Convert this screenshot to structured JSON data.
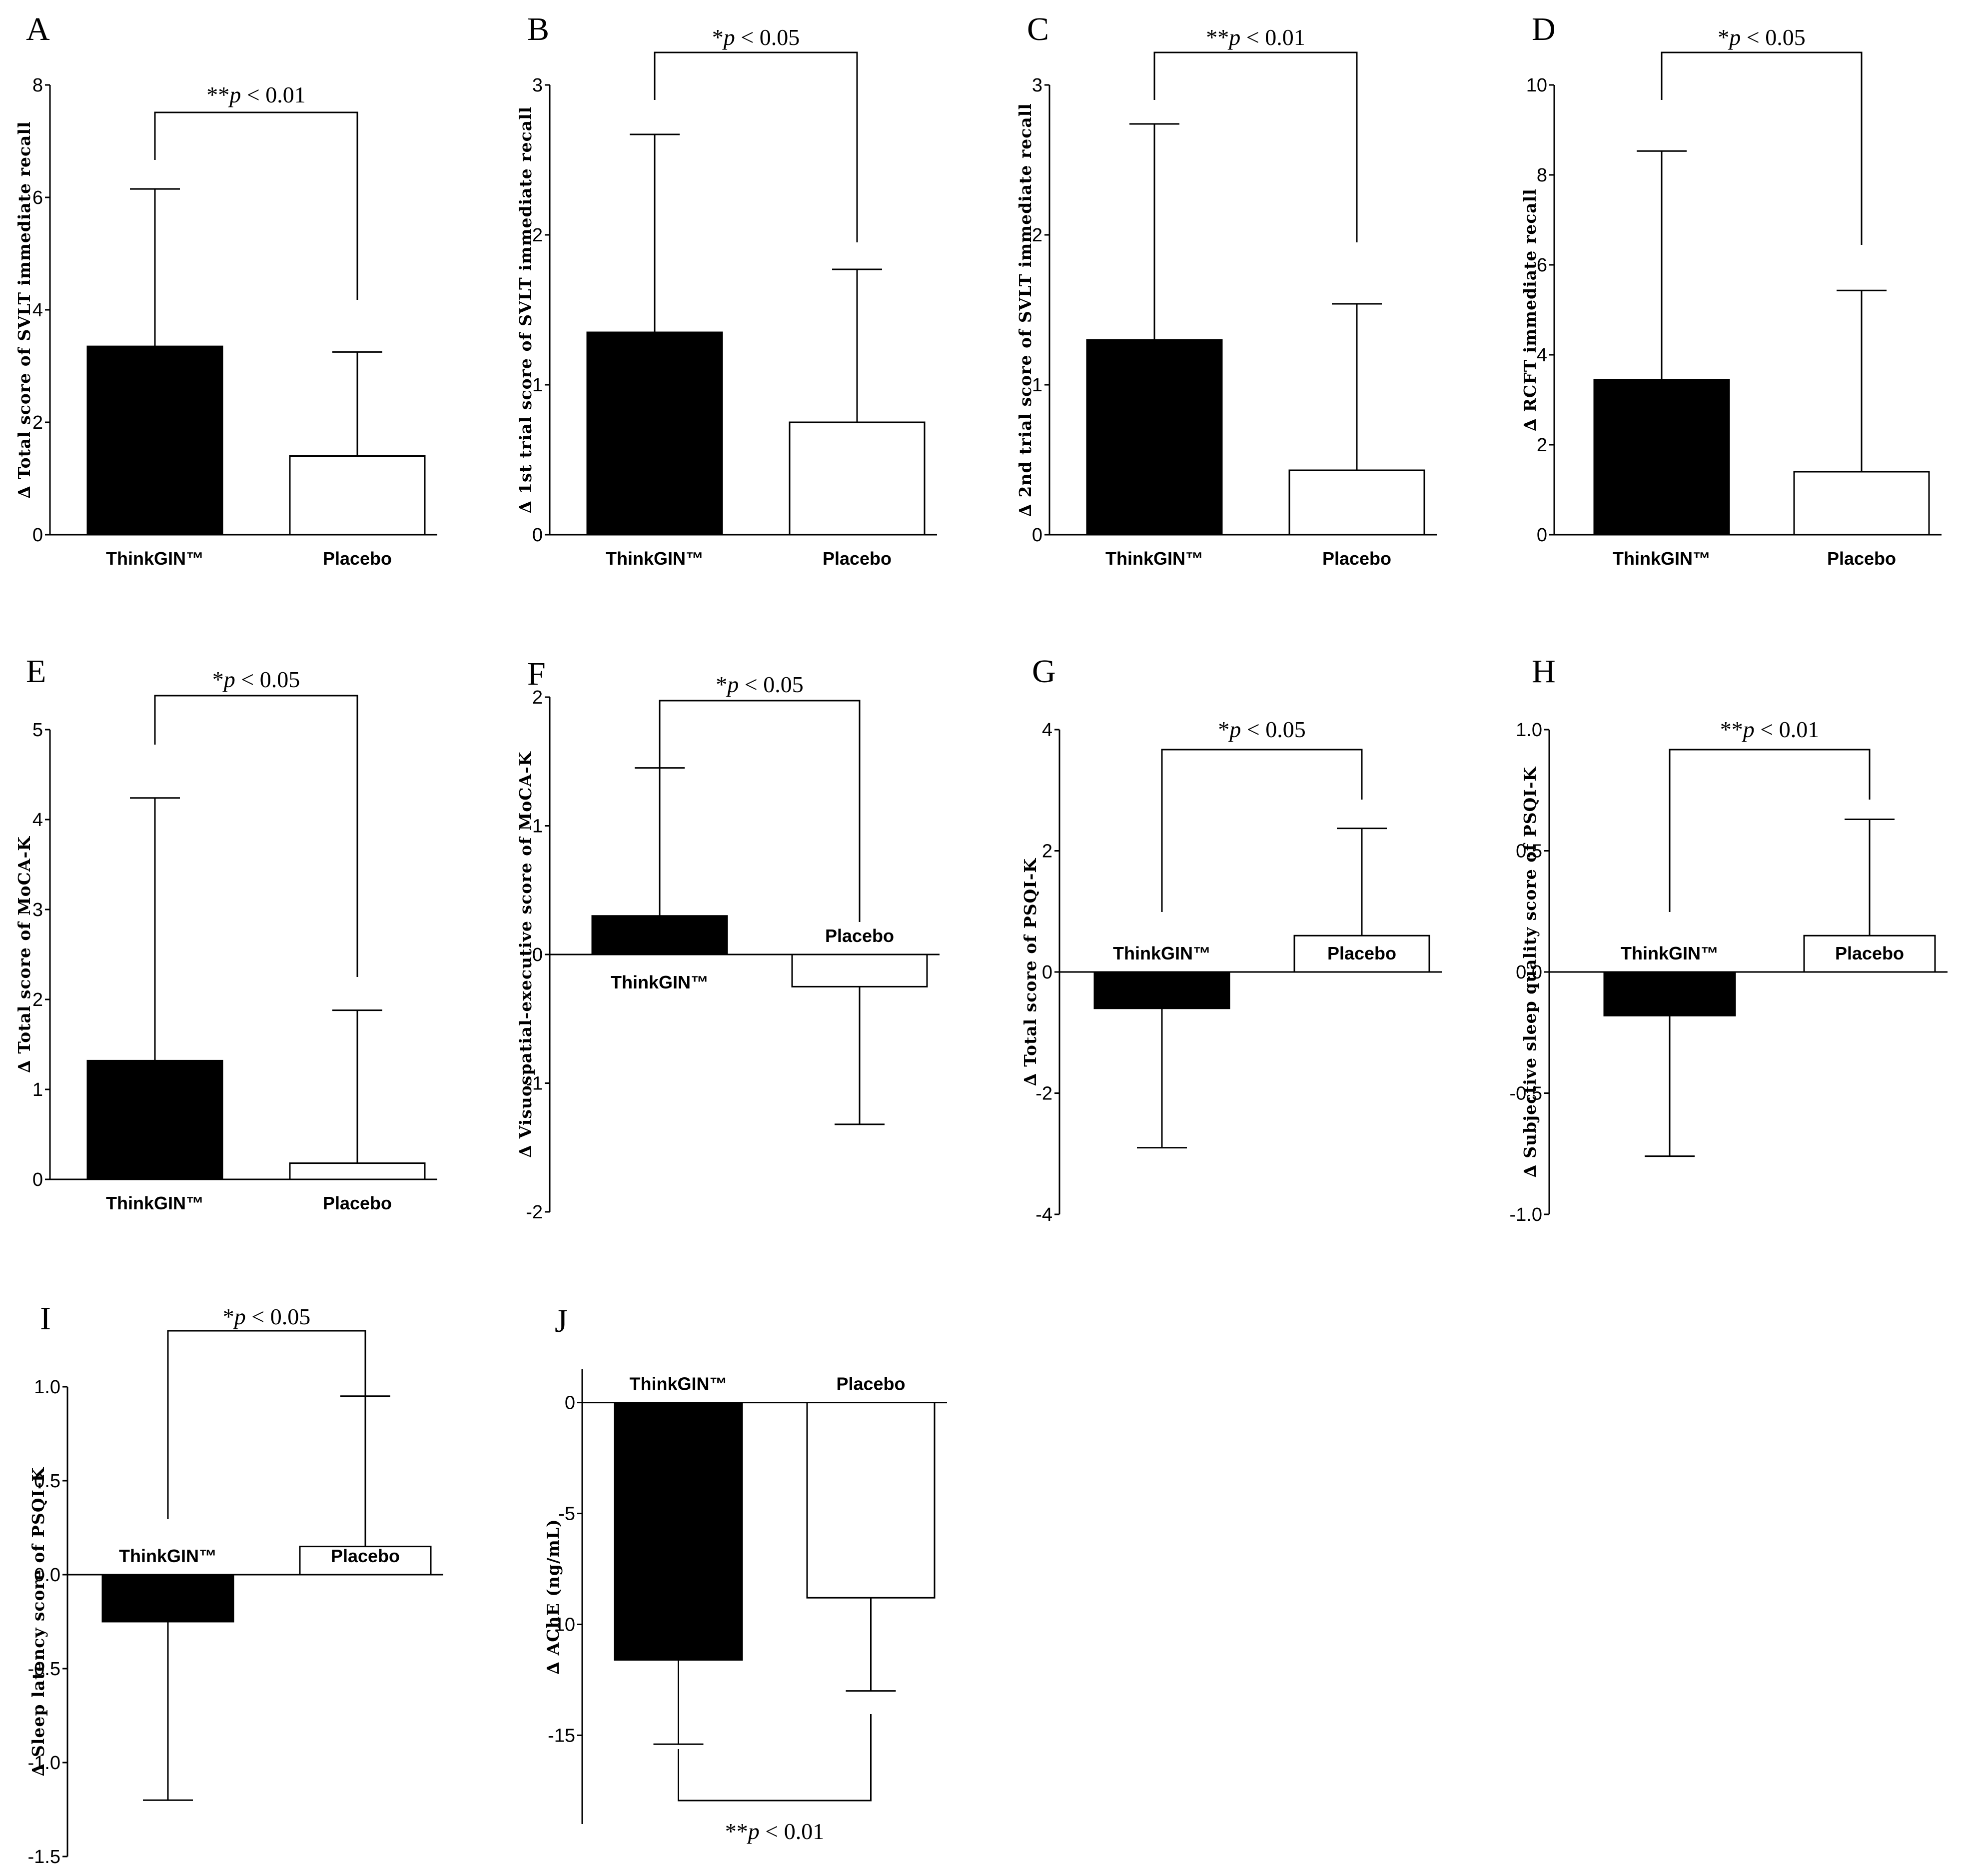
{
  "chart_data": [
    {
      "panel": "A",
      "type": "bar",
      "ylabel": "∆ Total score of SVLT immediate recall",
      "ylim": [
        0,
        8
      ],
      "yticks": [
        0,
        2,
        4,
        6,
        8
      ],
      "tick_labels": [
        "0",
        "2",
        "4",
        "6",
        "8"
      ],
      "categories": [
        "ThinkGIN™",
        "Placebo"
      ],
      "values": [
        3.35,
        1.4
      ],
      "errors": [
        2.8,
        1.85
      ],
      "significance": "**p < 0.01"
    },
    {
      "panel": "B",
      "type": "bar",
      "ylabel": "∆ 1st trial score of SVLT immediate recall",
      "ylim": [
        0,
        3
      ],
      "yticks": [
        0,
        1,
        2,
        3
      ],
      "tick_labels": [
        "0",
        "1",
        "2",
        "3"
      ],
      "categories": [
        "ThinkGIN™",
        "Placebo"
      ],
      "values": [
        1.35,
        0.75
      ],
      "errors": [
        1.32,
        1.02
      ],
      "significance": "*p < 0.05"
    },
    {
      "panel": "C",
      "type": "bar",
      "ylabel": "∆ 2nd trial score of SVLT immediate recall",
      "ylim": [
        0,
        3
      ],
      "yticks": [
        0,
        1,
        2,
        3
      ],
      "tick_labels": [
        "0",
        "1",
        "2",
        "3"
      ],
      "categories": [
        "ThinkGIN™",
        "Placebo"
      ],
      "values": [
        1.3,
        0.43
      ],
      "errors": [
        1.44,
        1.11
      ],
      "significance": "**p < 0.01"
    },
    {
      "panel": "D",
      "type": "bar",
      "ylabel": "∆ RCFT immediate recall",
      "ylim": [
        0,
        10
      ],
      "yticks": [
        0,
        2,
        4,
        6,
        8,
        10
      ],
      "tick_labels": [
        "0",
        "2",
        "4",
        "6",
        "8",
        "10"
      ],
      "categories": [
        "ThinkGIN™",
        "Placebo"
      ],
      "values": [
        3.45,
        1.4
      ],
      "errors": [
        5.08,
        4.03
      ],
      "significance": "*p < 0.05"
    },
    {
      "panel": "E",
      "type": "bar",
      "ylabel": "∆ Total score of MoCA-K",
      "ylim": [
        0,
        5
      ],
      "yticks": [
        0,
        1,
        2,
        3,
        4,
        5
      ],
      "tick_labels": [
        "0",
        "1",
        "2",
        "3",
        "4",
        "5"
      ],
      "categories": [
        "ThinkGIN™",
        "Placebo"
      ],
      "values": [
        1.32,
        0.18
      ],
      "errors": [
        2.92,
        1.7
      ],
      "significance": "*p < 0.05"
    },
    {
      "panel": "F",
      "type": "bar",
      "ylabel": "∆ Visuospatial-executive score of MoCA-K",
      "ylim": [
        -2,
        2
      ],
      "yticks": [
        -2,
        -1,
        0,
        1,
        2
      ],
      "tick_labels": [
        "-2",
        "-1",
        "0",
        "1",
        "2"
      ],
      "categories": [
        "ThinkGIN™",
        "Placebo"
      ],
      "values": [
        0.3,
        -0.25
      ],
      "errors": [
        1.15,
        1.07
      ],
      "significance": "*p < 0.05"
    },
    {
      "panel": "G",
      "type": "bar",
      "ylabel": "∆ Total score of PSQI-K",
      "ylim": [
        -4,
        4
      ],
      "yticks": [
        -4,
        -2,
        0,
        2,
        4
      ],
      "tick_labels": [
        "-4",
        "-2",
        "0",
        "2",
        "4"
      ],
      "categories": [
        "ThinkGIN™",
        "Placebo"
      ],
      "values": [
        -0.6,
        0.6
      ],
      "errors": [
        2.3,
        1.77
      ],
      "significance": "*p < 0.05"
    },
    {
      "panel": "H",
      "type": "bar",
      "ylabel": "∆ Subjective sleep quality score of PSQI-K",
      "ylim": [
        -1,
        1
      ],
      "yticks": [
        -1,
        -0.5,
        0,
        0.5,
        1
      ],
      "tick_labels": [
        "-1.0",
        "-0.5",
        "0.0",
        "0.5",
        "1.0"
      ],
      "categories": [
        "ThinkGIN™",
        "Placebo"
      ],
      "values": [
        -0.18,
        0.15
      ],
      "errors": [
        0.58,
        0.48
      ],
      "significance": "**p < 0.01"
    },
    {
      "panel": "I",
      "type": "bar",
      "ylabel": "∆ Sleep latency score of PSQI-K",
      "ylim": [
        -1.5,
        1
      ],
      "yticks": [
        -1.5,
        -1,
        -0.5,
        0,
        0.5,
        1
      ],
      "tick_labels": [
        "-1.5",
        "-1.0",
        "-0.5",
        "0.0",
        "0.5",
        "1.0"
      ],
      "categories": [
        "ThinkGIN™",
        "Placebo"
      ],
      "values": [
        -0.25,
        0.15
      ],
      "errors": [
        0.95,
        0.8
      ],
      "significance": "*p < 0.05"
    },
    {
      "panel": "J",
      "type": "bar",
      "ylabel": "∆ AChE (ng/mL)",
      "ylim": [
        -19,
        1.5
      ],
      "yticks": [
        -15,
        -10,
        -5,
        0
      ],
      "tick_labels": [
        "-15",
        "-10",
        "-5",
        "0"
      ],
      "categories": [
        "ThinkGIN™",
        "Placebo"
      ],
      "values": [
        -11.6,
        -8.8
      ],
      "errors": [
        3.8,
        4.2
      ],
      "significance": "**p < 0.01"
    }
  ]
}
